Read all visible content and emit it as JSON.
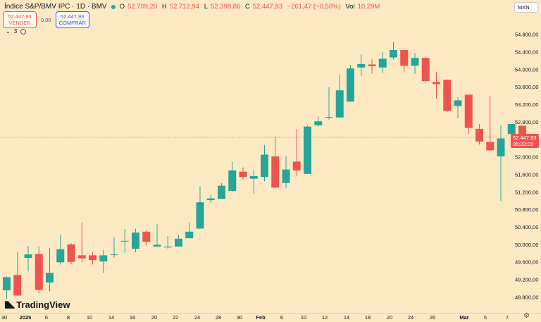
{
  "header": {
    "symbol": "Índice S&P/BMV IPC · 1D · BMV",
    "open_label": "O",
    "open": "52.709,20",
    "high_label": "H",
    "high": "52.712,94",
    "low_label": "L",
    "low": "52.398,86",
    "close_label": "C",
    "close": "52.447,93",
    "change": "−261,47 (−0,50%)",
    "vol_label": "Vol",
    "vol": "10,29M"
  },
  "trade": {
    "sell_price": "52.447,93",
    "sell_label": "VENDER",
    "spread": "0,00",
    "buy_price": "52.447,93",
    "buy_label": "COMPRAR"
  },
  "indicators": {
    "count": "3"
  },
  "currency": "MXN",
  "last_price": {
    "value": "52.447,93",
    "countdown": "05:22:01"
  },
  "logo": {
    "text": "TradingView"
  },
  "colors": {
    "up": "#26a69a",
    "down": "#ef5350",
    "background": "#fde9c4",
    "last_price": "#ef5350"
  },
  "chart_data": {
    "type": "candlestick",
    "y_axis_ticks": [
      "54.800,00",
      "54.400,00",
      "54.000,00",
      "53.600,00",
      "53.200,00",
      "52.800,00",
      "52.400,00",
      "52.000,00",
      "51.600,00",
      "51.200,00",
      "50.800,00",
      "50.400,00",
      "50.000,00",
      "49.600,00",
      "49.200,00",
      "48.800,00"
    ],
    "x_axis_ticks": [
      "30",
      "2025",
      "6",
      "8",
      "10",
      "14",
      "16",
      "20",
      "22",
      "24",
      "28",
      "30",
      "Feb",
      "6",
      "10",
      "12",
      "14",
      "18",
      "20",
      "24",
      "26",
      "Mar",
      "5",
      "7"
    ],
    "ylim": [
      48500,
      55100
    ],
    "candles": [
      {
        "o": 48950,
        "h": 49270,
        "l": 48750,
        "c": 49250
      },
      {
        "o": 49300,
        "h": 49820,
        "l": 48820,
        "c": 48830
      },
      {
        "o": 49690,
        "h": 49960,
        "l": 49380,
        "c": 49770
      },
      {
        "o": 49780,
        "h": 49950,
        "l": 48880,
        "c": 48960
      },
      {
        "o": 49130,
        "h": 49920,
        "l": 48930,
        "c": 49350
      },
      {
        "o": 49590,
        "h": 50220,
        "l": 49540,
        "c": 49890
      },
      {
        "o": 50000,
        "h": 50030,
        "l": 49550,
        "c": 49600
      },
      {
        "o": 49750,
        "h": 50500,
        "l": 49590,
        "c": 49680
      },
      {
        "o": 49750,
        "h": 49820,
        "l": 49540,
        "c": 49640
      },
      {
        "o": 49610,
        "h": 49870,
        "l": 49350,
        "c": 49750
      },
      {
        "o": 49760,
        "h": 50160,
        "l": 49700,
        "c": 49770
      },
      {
        "o": 50070,
        "h": 50350,
        "l": 49810,
        "c": 50080
      },
      {
        "o": 49900,
        "h": 50360,
        "l": 49820,
        "c": 50270
      },
      {
        "o": 50290,
        "h": 50330,
        "l": 49970,
        "c": 50060
      },
      {
        "o": 49950,
        "h": 50460,
        "l": 49950,
        "c": 49990
      },
      {
        "o": 49930,
        "h": 50190,
        "l": 49900,
        "c": 49950
      },
      {
        "o": 49950,
        "h": 50220,
        "l": 49950,
        "c": 50130
      },
      {
        "o": 50140,
        "h": 50500,
        "l": 50140,
        "c": 50290
      },
      {
        "o": 50360,
        "h": 51330,
        "l": 50360,
        "c": 50960
      },
      {
        "o": 51010,
        "h": 51130,
        "l": 50950,
        "c": 51050
      },
      {
        "o": 51040,
        "h": 51400,
        "l": 51040,
        "c": 51340
      },
      {
        "o": 51220,
        "h": 51890,
        "l": 51210,
        "c": 51690
      },
      {
        "o": 51660,
        "h": 51760,
        "l": 51480,
        "c": 51540
      },
      {
        "o": 51500,
        "h": 51700,
        "l": 51160,
        "c": 51560
      },
      {
        "o": 51540,
        "h": 52270,
        "l": 51440,
        "c": 52050
      },
      {
        "o": 52010,
        "h": 52460,
        "l": 51280,
        "c": 51300
      },
      {
        "o": 51400,
        "h": 52020,
        "l": 51290,
        "c": 51710
      },
      {
        "o": 51890,
        "h": 52640,
        "l": 51560,
        "c": 51690
      },
      {
        "o": 51610,
        "h": 52720,
        "l": 51610,
        "c": 52690
      },
      {
        "o": 52720,
        "h": 52920,
        "l": 52690,
        "c": 52810
      },
      {
        "o": 52910,
        "h": 53590,
        "l": 52850,
        "c": 52910
      },
      {
        "o": 52900,
        "h": 53880,
        "l": 52890,
        "c": 53520
      },
      {
        "o": 53260,
        "h": 54100,
        "l": 53260,
        "c": 54020
      },
      {
        "o": 54040,
        "h": 54350,
        "l": 53850,
        "c": 54120
      },
      {
        "o": 54110,
        "h": 54230,
        "l": 53900,
        "c": 54070
      },
      {
        "o": 54040,
        "h": 54390,
        "l": 53910,
        "c": 54240
      },
      {
        "o": 54270,
        "h": 54630,
        "l": 54220,
        "c": 54440
      },
      {
        "o": 54440,
        "h": 54450,
        "l": 53940,
        "c": 54080
      },
      {
        "o": 54080,
        "h": 54370,
        "l": 53900,
        "c": 54260
      },
      {
        "o": 54260,
        "h": 54270,
        "l": 53700,
        "c": 53730
      },
      {
        "o": 53710,
        "h": 53940,
        "l": 53330,
        "c": 53660
      },
      {
        "o": 53760,
        "h": 53760,
        "l": 53020,
        "c": 53050
      },
      {
        "o": 53160,
        "h": 53360,
        "l": 52880,
        "c": 53290
      },
      {
        "o": 53420,
        "h": 53420,
        "l": 52520,
        "c": 52660
      },
      {
        "o": 52640,
        "h": 52750,
        "l": 52280,
        "c": 52350
      },
      {
        "o": 52340,
        "h": 53400,
        "l": 52140,
        "c": 52150
      },
      {
        "o": 52010,
        "h": 52720,
        "l": 50990,
        "c": 52420
      },
      {
        "o": 52520,
        "h": 52750,
        "l": 52330,
        "c": 52750
      },
      {
        "o": 52710,
        "h": 52710,
        "l": 52400,
        "c": 52450
      }
    ]
  }
}
